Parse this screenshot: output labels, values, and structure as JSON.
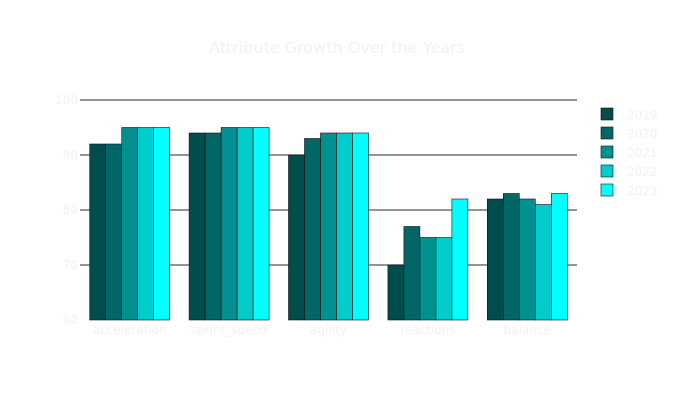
{
  "chart_data": {
    "type": "bar",
    "title": "Attribute Growth Over the Years",
    "xlabel": "",
    "ylabel": "",
    "categories": [
      "acceleration",
      "sprint_speed",
      "agility",
      "reactions",
      "balance"
    ],
    "series": [
      {
        "name": "2019",
        "color": "#004d4d",
        "values": [
          92,
          94,
          90,
          70,
          82
        ]
      },
      {
        "name": "2020",
        "color": "#006666",
        "values": [
          92,
          94,
          93,
          77,
          83
        ]
      },
      {
        "name": "2021",
        "color": "#009090",
        "values": [
          95,
          95,
          94,
          75,
          82
        ]
      },
      {
        "name": "2022",
        "color": "#00cccc",
        "values": [
          95,
          95,
          94,
          75,
          81
        ]
      },
      {
        "name": "2023",
        "color": "#00ffff",
        "values": [
          95,
          95,
          94,
          82,
          83
        ]
      }
    ],
    "ylim": [
      60,
      100
    ],
    "yticks": [
      60,
      70,
      80,
      90,
      100
    ],
    "grid": true,
    "legend": "right",
    "colors": {
      "text": "#f0f0f8",
      "grid": "#555555",
      "bar_outline": "#111111"
    }
  }
}
